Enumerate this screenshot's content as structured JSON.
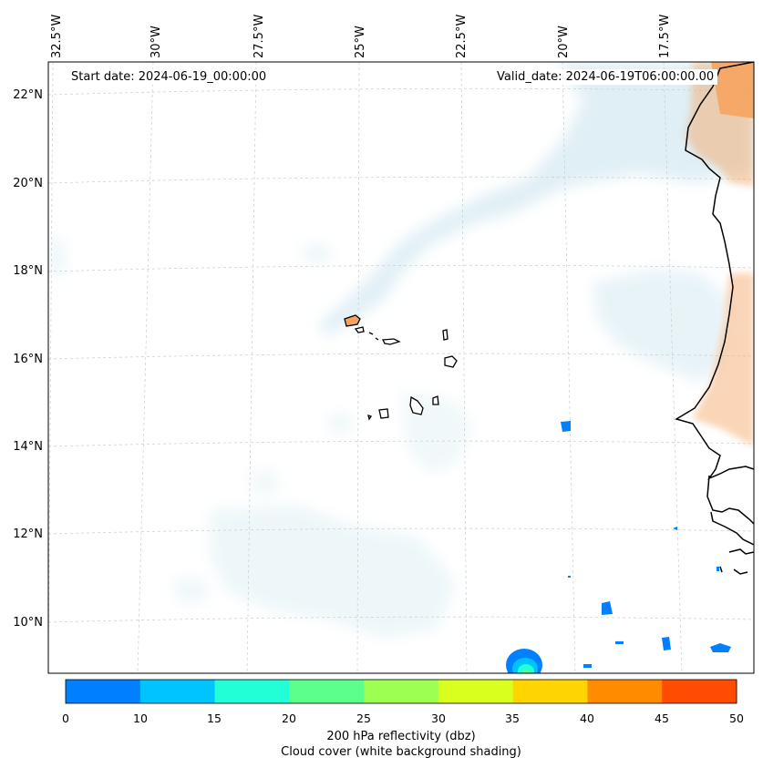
{
  "map": {
    "start_label": "Start date: 2024-06-19_00:00:00",
    "valid_label": "Valid_date: 2024-06-19T06:00:00.00",
    "lon_labels": [
      "32.5°W",
      "30°W",
      "27.5°W",
      "25°W",
      "22.5°W",
      "20°W",
      "17.5°W"
    ],
    "lat_labels": [
      "22°N",
      "20°N",
      "18°N",
      "16°N",
      "14°N",
      "12°N",
      "10°N"
    ],
    "gridlines": true,
    "cloud_shading_color": "#d6eaf2",
    "land_shading_color": "#f5a35f"
  },
  "colorbar": {
    "ticks": [
      "0",
      "10",
      "15",
      "20",
      "25",
      "30",
      "35",
      "40",
      "45",
      "50"
    ],
    "colors": [
      "#0080ff",
      "#00c4ff",
      "#22ffd6",
      "#5cff8c",
      "#9cff52",
      "#d9ff1e",
      "#ffd500",
      "#ff8c00",
      "#ff4c00"
    ],
    "label": "200 hPa reflectivity (dbz)",
    "sublabel": "Cloud cover (white background shading)"
  }
}
